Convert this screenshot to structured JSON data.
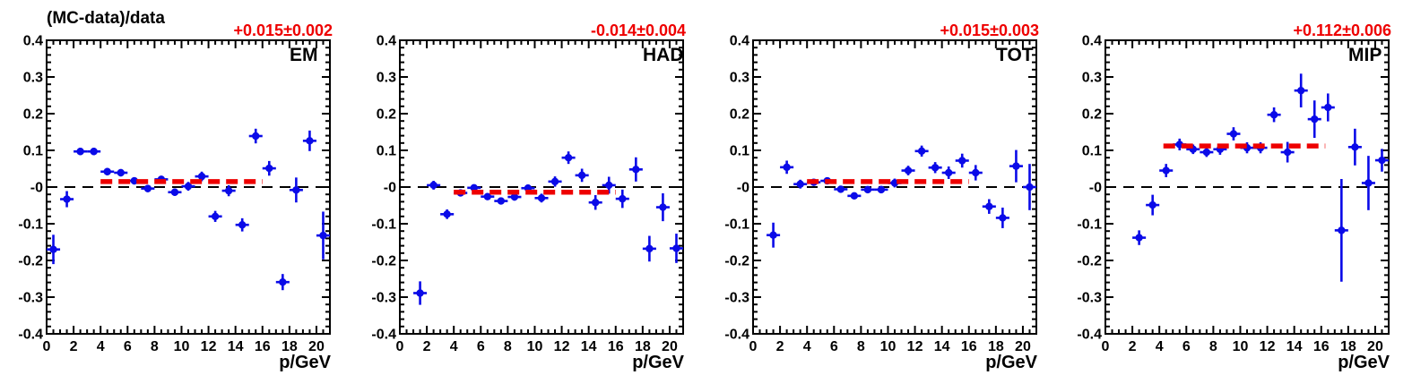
{
  "page": {
    "title": "(MC-data)/data",
    "xlabel": "p/GeV"
  },
  "style": {
    "background": "#ffffff",
    "marker_color": "#0a0ae8",
    "fit_line_color": "#ee0000",
    "annotation_color": "#ee0000",
    "axis_color": "#000000",
    "zero_line_color": "#000000"
  },
  "axes": {
    "xlim": [
      0,
      21
    ],
    "ylim": [
      -0.4,
      0.4
    ],
    "xticks": [
      0,
      2,
      4,
      6,
      8,
      10,
      12,
      14,
      16,
      18,
      20
    ],
    "x_minor_step": 0.5,
    "yticks": [
      0.4,
      0.3,
      0.2,
      0.1,
      0,
      -0.1,
      -0.2,
      -0.3,
      -0.4
    ],
    "ytick_labels": [
      "0.4",
      "0.3",
      "0.2",
      "0.1",
      "-0",
      "-0.1",
      "-0.2",
      "-0.3",
      "-0.4"
    ],
    "y_minor_step": 0.02,
    "x_error_halfwidth": 0.5,
    "grid": false
  },
  "chart_data": [
    {
      "type": "scatter",
      "label": "EM",
      "show_title": true,
      "fit_text": "+0.015±0.002",
      "fit_value": 0.015,
      "fit_range": [
        4,
        16
      ],
      "points": [
        [
          0.5,
          -0.17,
          0.04
        ],
        [
          1.5,
          -0.033,
          0.022
        ],
        [
          2.5,
          0.097,
          0.01
        ],
        [
          3.5,
          0.097,
          0.01
        ],
        [
          4.5,
          0.042,
          0.01
        ],
        [
          5.5,
          0.039,
          0.01
        ],
        [
          6.5,
          0.017,
          0.01
        ],
        [
          7.5,
          -0.004,
          0.01
        ],
        [
          8.5,
          0.021,
          0.01
        ],
        [
          9.5,
          -0.014,
          0.01
        ],
        [
          10.5,
          0.002,
          0.012
        ],
        [
          11.5,
          0.029,
          0.013
        ],
        [
          12.5,
          -0.08,
          0.015
        ],
        [
          13.5,
          -0.01,
          0.015
        ],
        [
          14.5,
          -0.103,
          0.018
        ],
        [
          15.5,
          0.139,
          0.02
        ],
        [
          16.5,
          0.051,
          0.02
        ],
        [
          17.5,
          -0.259,
          0.022
        ],
        [
          18.5,
          -0.008,
          0.034
        ],
        [
          19.5,
          0.126,
          0.028
        ],
        [
          20.5,
          -0.132,
          0.065
        ]
      ]
    },
    {
      "type": "scatter",
      "label": "HAD",
      "show_title": false,
      "fit_text": "-0.014±0.004",
      "fit_value": -0.014,
      "fit_range": [
        4,
        16
      ],
      "points": [
        [
          1.5,
          -0.289,
          0.032
        ],
        [
          2.5,
          0.005,
          0.012
        ],
        [
          3.5,
          -0.074,
          0.013
        ],
        [
          4.5,
          -0.016,
          0.009
        ],
        [
          5.5,
          -0.002,
          0.009
        ],
        [
          6.5,
          -0.026,
          0.009
        ],
        [
          7.5,
          -0.038,
          0.009
        ],
        [
          8.5,
          -0.027,
          0.01
        ],
        [
          9.5,
          -0.003,
          0.01
        ],
        [
          10.5,
          -0.03,
          0.012
        ],
        [
          11.5,
          0.015,
          0.014
        ],
        [
          12.5,
          0.08,
          0.017
        ],
        [
          13.5,
          0.032,
          0.018
        ],
        [
          14.5,
          -0.042,
          0.02
        ],
        [
          15.5,
          0.005,
          0.023
        ],
        [
          16.5,
          -0.032,
          0.025
        ],
        [
          17.5,
          0.048,
          0.033
        ],
        [
          18.5,
          -0.168,
          0.035
        ],
        [
          19.5,
          -0.055,
          0.038
        ],
        [
          20.5,
          -0.167,
          0.04
        ]
      ]
    },
    {
      "type": "scatter",
      "label": "TOT",
      "show_title": false,
      "fit_text": "+0.015±0.003",
      "fit_value": 0.015,
      "fit_range": [
        4,
        16
      ],
      "points": [
        [
          1.5,
          -0.131,
          0.034
        ],
        [
          2.5,
          0.054,
          0.018
        ],
        [
          3.5,
          0.008,
          0.012
        ],
        [
          4.5,
          0.013,
          0.009
        ],
        [
          5.5,
          0.017,
          0.009
        ],
        [
          6.5,
          -0.006,
          0.009
        ],
        [
          7.5,
          -0.024,
          0.009
        ],
        [
          8.5,
          -0.007,
          0.009
        ],
        [
          9.5,
          -0.007,
          0.01
        ],
        [
          10.5,
          0.011,
          0.012
        ],
        [
          11.5,
          0.045,
          0.013
        ],
        [
          12.5,
          0.098,
          0.015
        ],
        [
          13.5,
          0.053,
          0.015
        ],
        [
          14.5,
          0.039,
          0.017
        ],
        [
          15.5,
          0.072,
          0.019
        ],
        [
          16.5,
          0.039,
          0.021
        ],
        [
          17.5,
          -0.053,
          0.02
        ],
        [
          18.5,
          -0.084,
          0.028
        ],
        [
          19.5,
          0.057,
          0.044
        ],
        [
          20.5,
          0.0,
          0.063
        ]
      ]
    },
    {
      "type": "scatter",
      "label": "MIP",
      "show_title": false,
      "fit_text": "+0.112±0.006",
      "fit_value": 0.112,
      "fit_range": [
        4.3,
        16.3
      ],
      "points": [
        [
          2.5,
          -0.138,
          0.02
        ],
        [
          3.5,
          -0.049,
          0.028
        ],
        [
          4.5,
          0.045,
          0.018
        ],
        [
          5.5,
          0.116,
          0.016
        ],
        [
          6.5,
          0.103,
          0.013
        ],
        [
          7.5,
          0.095,
          0.013
        ],
        [
          8.5,
          0.103,
          0.015
        ],
        [
          9.5,
          0.145,
          0.018
        ],
        [
          10.5,
          0.107,
          0.015
        ],
        [
          11.5,
          0.107,
          0.015
        ],
        [
          12.5,
          0.197,
          0.02
        ],
        [
          13.5,
          0.095,
          0.028
        ],
        [
          14.5,
          0.263,
          0.046
        ],
        [
          15.5,
          0.185,
          0.051
        ],
        [
          16.5,
          0.217,
          0.038
        ],
        [
          17.5,
          -0.118,
          0.14
        ],
        [
          18.5,
          0.109,
          0.05
        ],
        [
          19.5,
          0.011,
          0.074
        ],
        [
          20.5,
          0.073,
          0.031
        ]
      ]
    }
  ]
}
